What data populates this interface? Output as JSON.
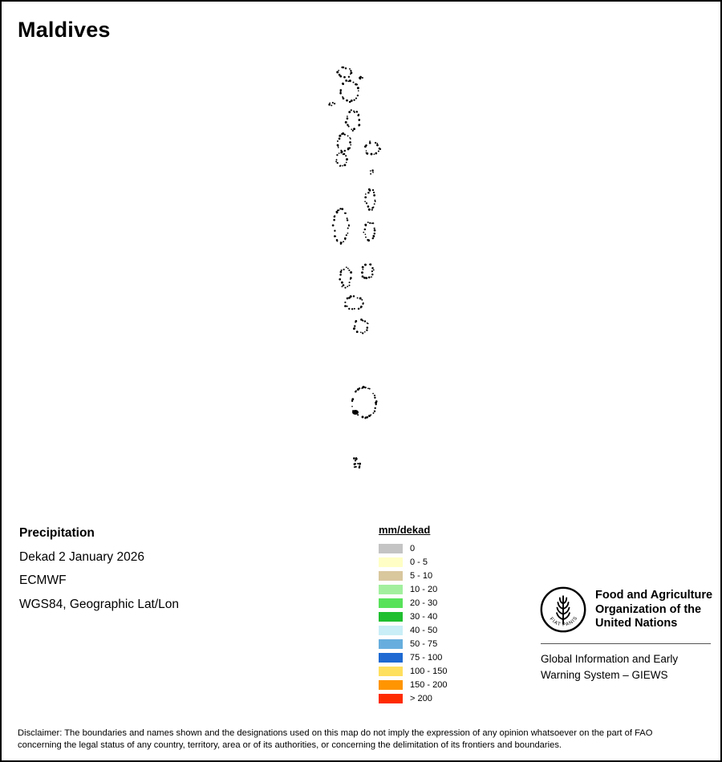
{
  "title": "Maldives",
  "info": {
    "product": "Precipitation",
    "period": "Dekad 2 January 2026",
    "source": "ECMWF",
    "projection": "WGS84, Geographic Lat/Lon"
  },
  "legend": {
    "title": "mm/dekad",
    "items": [
      {
        "label": "0",
        "color": "#c4c4c4"
      },
      {
        "label": "0 - 5",
        "color": "#ffffc5"
      },
      {
        "label": "5 - 10",
        "color": "#d9c79e"
      },
      {
        "label": "10 - 20",
        "color": "#a2f09e"
      },
      {
        "label": "20 - 30",
        "color": "#58e25a"
      },
      {
        "label": "30 - 40",
        "color": "#1fbf2f"
      },
      {
        "label": "40 - 50",
        "color": "#c9eef7"
      },
      {
        "label": "50 - 75",
        "color": "#67aede"
      },
      {
        "label": "75 - 100",
        "color": "#1e6ad2"
      },
      {
        "label": "100 - 150",
        "color": "#ffdf5e"
      },
      {
        "label": "150 - 200",
        "color": "#ff9500"
      },
      {
        "label": "> 200",
        "color": "#ff2b00"
      }
    ]
  },
  "fao": {
    "motto": "FIAT PANIS",
    "org_lines": [
      "Food and Agriculture",
      "Organization of the",
      "United Nations"
    ],
    "giews_lines": [
      "Global Information and Early",
      "Warning System – GIEWS"
    ]
  },
  "disclaimer_lines": [
    "Disclaimer: The boundaries and names shown and the designations used on this map do not imply the expression of any opinion whatsoever on the part of FAO",
    "concerning the legal status of any country, territory, area or of its authorities, or concerning the delimitation of its frontiers and boundaries."
  ]
}
